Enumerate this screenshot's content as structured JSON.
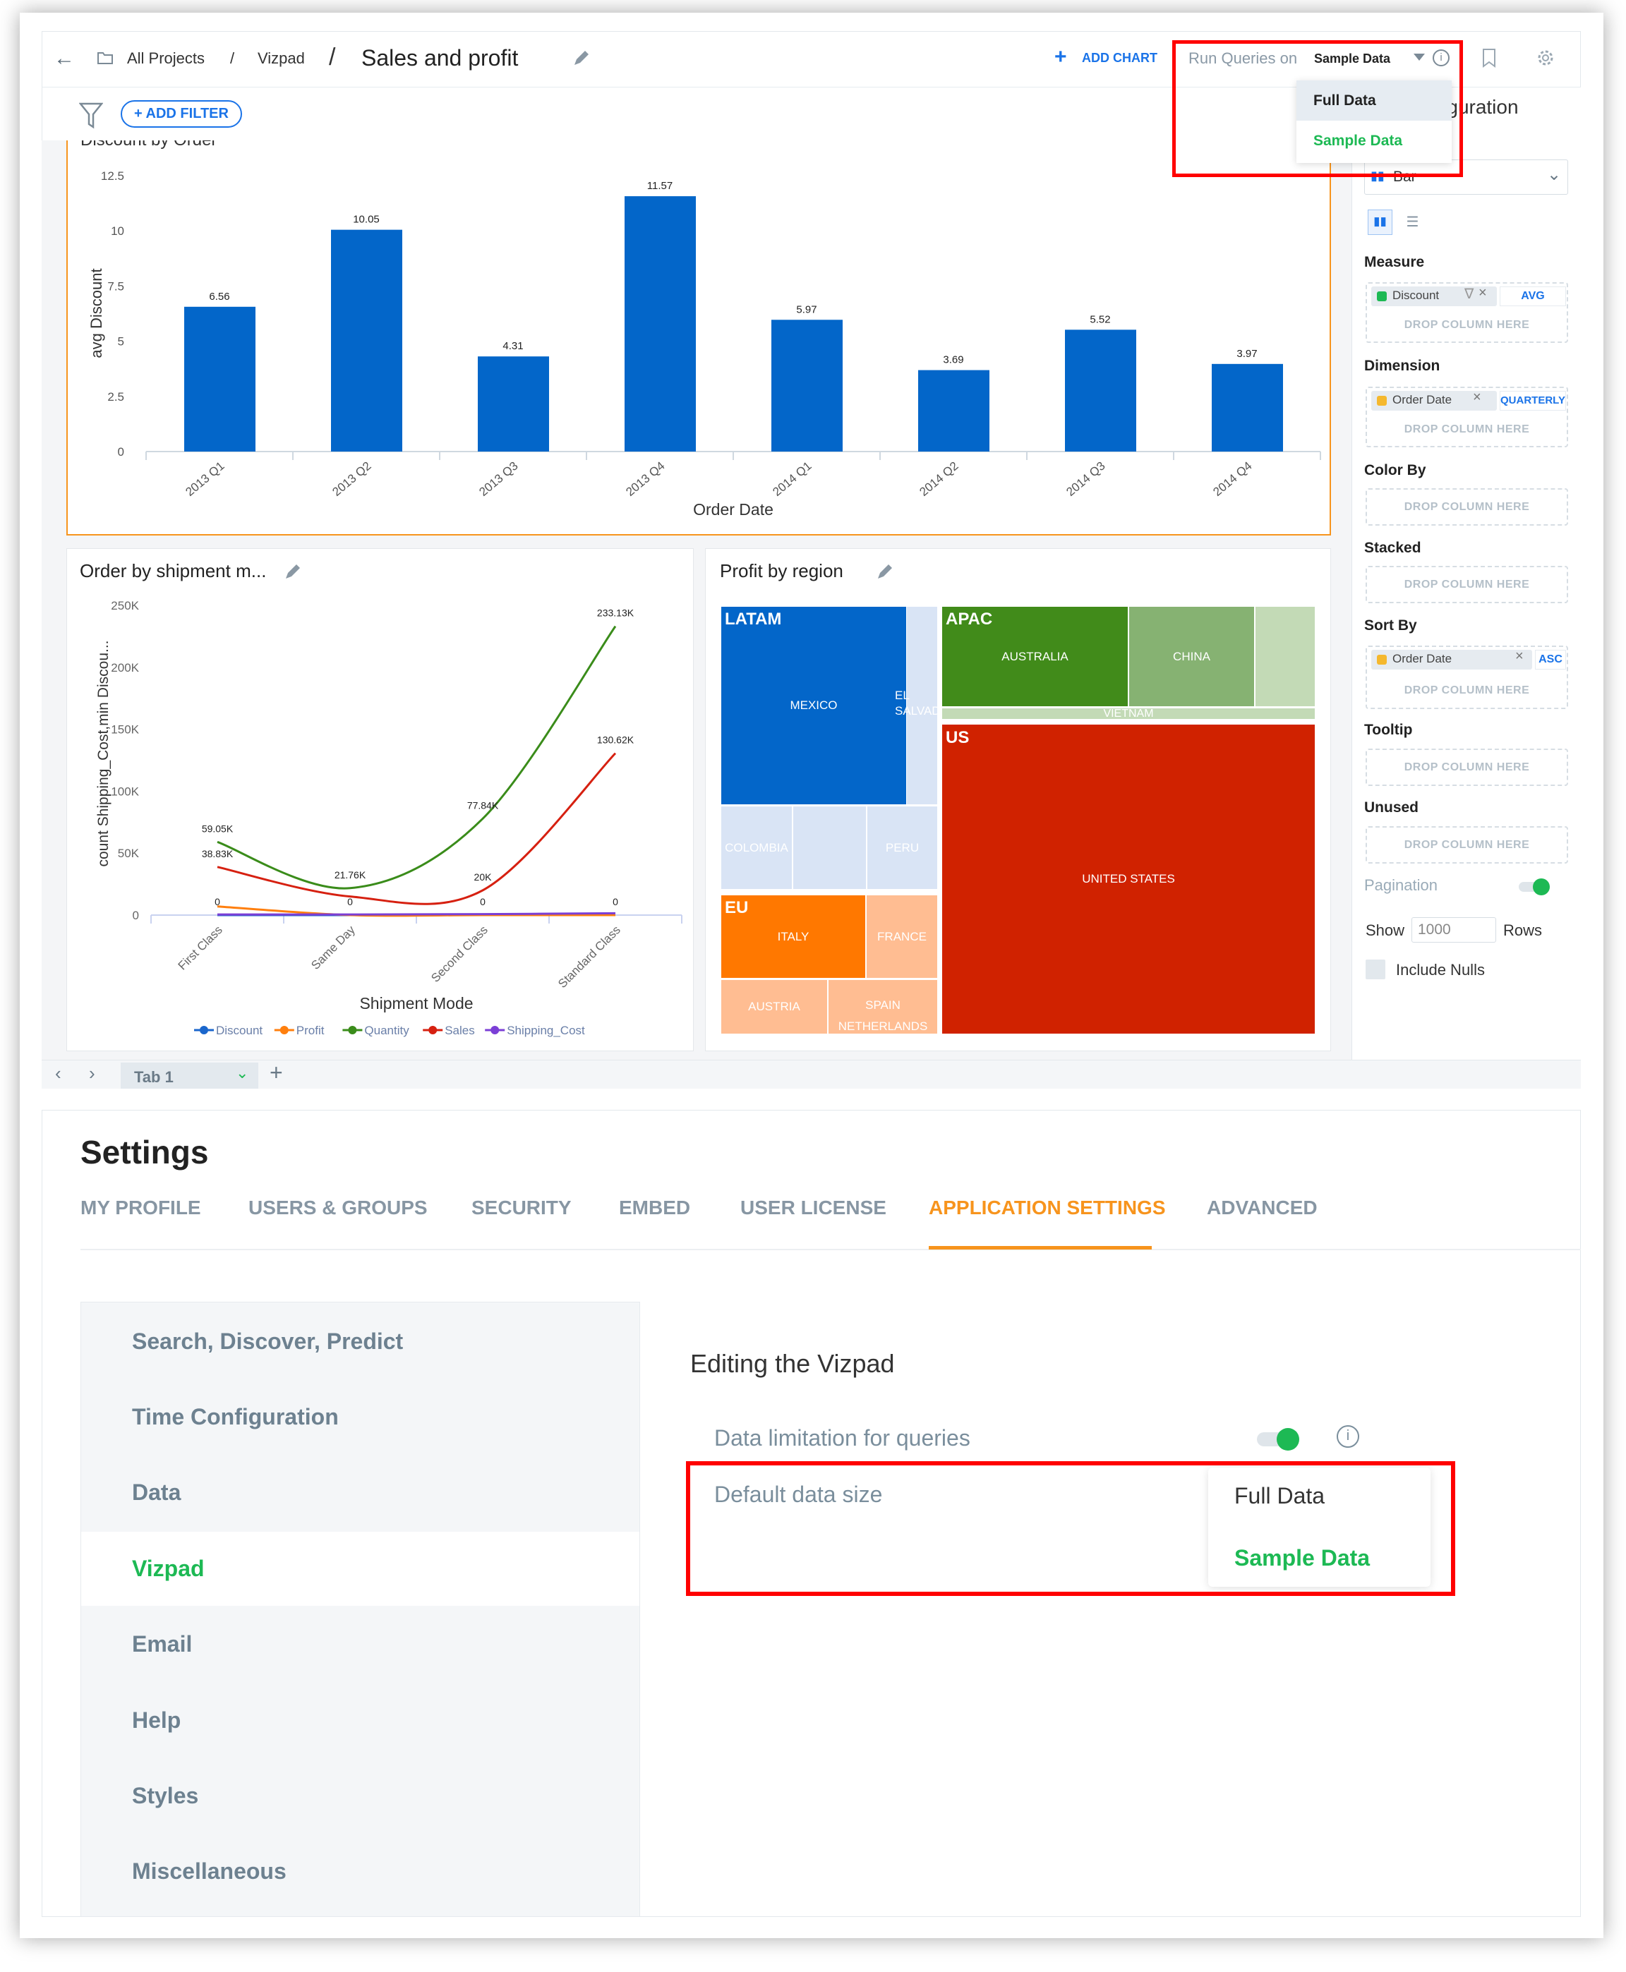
{
  "header": {
    "breadcrumb_root": "All Projects",
    "breadcrumb_sep": "/",
    "breadcrumb_project": "Vizpad",
    "title": "Sales and profit",
    "add_chart": "ADD CHART",
    "run_queries_label": "Run Queries on",
    "run_queries_value": "Sample Data",
    "run_queries_options": [
      "Full Data",
      "Sample Data"
    ]
  },
  "filter": {
    "add_filter": "ADD FILTER"
  },
  "config_panel": {
    "title": "Configuration",
    "chart_type": "Bar",
    "measure_label": "Measure",
    "measure_field": "Discount",
    "measure_agg": "AVG",
    "dimension_label": "Dimension",
    "dimension_field": "Order Date",
    "dimension_agg": "QUARTERLY",
    "color_by_label": "Color By",
    "stacked_label": "Stacked",
    "sort_by_label": "Sort By",
    "sort_field": "Order Date",
    "sort_dir": "ASC",
    "tooltip_label": "Tooltip",
    "unused_label": "Unused",
    "drop_text": "DROP COLUMN HERE",
    "pagination_label": "Pagination",
    "pagination_on": true,
    "show_label": "Show",
    "show_value": "1000",
    "rows_label": "Rows",
    "include_nulls_label": "Include Nulls",
    "include_nulls": false
  },
  "cards": {
    "bar_title": "Discount by Order",
    "line_title": "Order by shipment m...",
    "treemap_title": "Profit by region"
  },
  "chart_data": [
    {
      "type": "bar",
      "title": "Discount by Order",
      "categories": [
        "2013 Q1",
        "2013 Q2",
        "2013 Q3",
        "2013 Q4",
        "2014 Q1",
        "2014 Q2",
        "2014 Q3",
        "2014 Q4"
      ],
      "values": [
        6.56,
        10.05,
        4.31,
        11.57,
        5.97,
        3.69,
        5.52,
        3.97
      ],
      "data_labels": [
        "6.56",
        "10.05",
        "4.31",
        "11.57",
        "5.97",
        "3.69",
        "5.52",
        "3.97"
      ],
      "xlabel": "Order Date",
      "ylabel": "avg Discount",
      "ylim": [
        0,
        12.5
      ],
      "yticks": [
        "0",
        "2.5",
        "5",
        "7.5",
        "10",
        "12.5"
      ],
      "color": "#0366c9"
    },
    {
      "type": "line",
      "title": "Order by shipment m...",
      "categories": [
        "First Class",
        "Same Day",
        "Second Class",
        "Standard Class"
      ],
      "xlabel": "Shipment Mode",
      "ylabel": "count Shipping_Cost,min Discou...",
      "ylim": [
        0,
        250000
      ],
      "yticks": [
        "0",
        "50K",
        "100K",
        "150K",
        "200K",
        "250K"
      ],
      "legend": "bottom",
      "series": [
        {
          "name": "Discount",
          "color": "#1a66cc",
          "values": [
            0,
            0,
            0,
            0
          ],
          "labels": [
            "0",
            "0",
            "0",
            "0"
          ]
        },
        {
          "name": "Profit",
          "color": "#ff7f0e",
          "values": [
            7000,
            0,
            0,
            0
          ],
          "labels": [
            null,
            null,
            null,
            null
          ]
        },
        {
          "name": "Quantity",
          "color": "#3a8c1a",
          "values": [
            59050,
            21760,
            77840,
            233130
          ],
          "labels": [
            "59.05K",
            "21.76K",
            "77.84K",
            "233.13K"
          ]
        },
        {
          "name": "Sales",
          "color": "#d62010",
          "values": [
            38830,
            15000,
            20000,
            130620
          ],
          "labels": [
            "38.83K",
            null,
            "20K",
            "130.62K"
          ]
        },
        {
          "name": "Shipping_Cost",
          "color": "#7b3fd6",
          "values": [
            500,
            500,
            800,
            1500
          ],
          "labels": [
            null,
            null,
            null,
            null
          ]
        }
      ]
    }
  ],
  "treemap": {
    "regions": [
      "LATAM",
      "APAC",
      "US",
      "EU"
    ],
    "countries": [
      "MEXICO",
      "EL SALVADOR",
      "COLOMBIA",
      "PERU",
      "AUSTRALIA",
      "CHINA",
      "VIETNAM",
      "UNITED STATES",
      "ITALY",
      "FRANCE",
      "AUSTRIA",
      "SPAIN",
      "NETHERLANDS"
    ],
    "colors": {
      "latam": "#0366c9",
      "latam_light": "#d9e4f5",
      "apac": "#418b1a",
      "apac_mid": "#86b272",
      "apac_light": "#c3dab6",
      "us": "#d02200",
      "eu": "#ff7800",
      "eu_light": "#ffbd92"
    }
  },
  "tabs": {
    "current": "Tab 1"
  },
  "settings": {
    "title": "Settings",
    "tabs": [
      "MY PROFILE",
      "USERS & GROUPS",
      "SECURITY",
      "EMBED",
      "USER LICENSE",
      "APPLICATION SETTINGS",
      "ADVANCED"
    ],
    "active_tab": "APPLICATION SETTINGS",
    "nav": [
      "Search, Discover, Predict",
      "Time Configuration",
      "Data",
      "Vizpad",
      "Email",
      "Help",
      "Styles",
      "Miscellaneous"
    ],
    "active_nav": "Vizpad",
    "section_title": "Editing the Vizpad",
    "data_limitation_label": "Data limitation for queries",
    "data_limitation_on": true,
    "default_size_label": "Default data size",
    "default_size_options": [
      "Full Data",
      "Sample Data"
    ],
    "default_size_selected": "Sample Data"
  },
  "colors": {
    "accent_blue": "#1a73e8",
    "active_green": "#1db954",
    "tab_orange": "#f7941d",
    "highlight_red": "#ff0000"
  }
}
